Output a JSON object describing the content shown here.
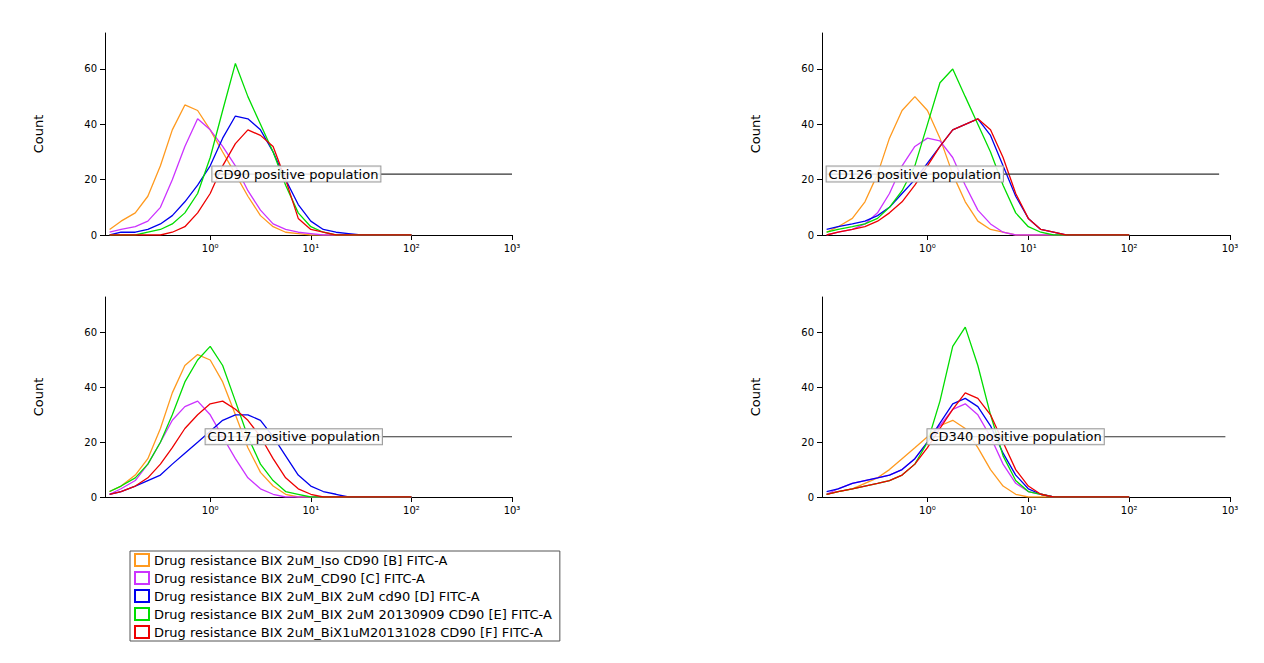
{
  "chart_data": [
    {
      "type": "line",
      "ylabel": "Count",
      "log": "x",
      "legend": "bottom left",
      "xlim": [
        0.09,
        1000
      ],
      "xticks": [
        {
          "value": 1,
          "label": "10⁰"
        },
        {
          "value": 10,
          "label": "10¹"
        },
        {
          "value": 100,
          "label": "10²"
        },
        {
          "value": 1000,
          "label": "10³"
        }
      ],
      "ylim": [
        0,
        73
      ],
      "yticks": [
        0,
        20,
        40,
        60
      ],
      "annotations": [
        {
          "text": "CD90 positive population",
          "x": [
            1.05,
            1000
          ],
          "y": 22
        }
      ],
      "x": [
        0.1,
        0.13,
        0.18,
        0.24,
        0.32,
        0.42,
        0.56,
        0.75,
        1,
        1.33,
        1.78,
        2.37,
        3.16,
        4.22,
        5.62,
        7.5,
        10,
        13.3,
        17.8,
        23.7,
        31.6,
        42,
        56,
        75,
        100
      ],
      "series": [
        {
          "name": "Drug resistance BIX 2uM_Iso CD90 [B] FITC-A",
          "color": "#ff9a1f",
          "values": [
            2,
            5,
            8,
            14,
            25,
            38,
            47,
            45,
            38,
            30,
            22,
            14,
            7,
            3,
            1,
            0.5,
            0,
            0,
            0,
            0,
            0,
            0,
            0,
            0,
            0
          ]
        },
        {
          "name": "Drug resistance BIX 2uM_CD90 [C] FITC-A",
          "color": "#cc33ff",
          "values": [
            1,
            2,
            3,
            5,
            10,
            20,
            32,
            42,
            38,
            32,
            25,
            16,
            9,
            4,
            2,
            1,
            0.5,
            0,
            0,
            0,
            0,
            0,
            0,
            0,
            0
          ]
        },
        {
          "name": "Drug resistance BIX 2uM_BIX 2uM cd90 [D] FITC-A",
          "color": "#0000ee",
          "values": [
            0,
            1,
            1,
            2,
            4,
            7,
            12,
            18,
            25,
            35,
            43,
            42,
            38,
            30,
            20,
            11,
            5,
            2,
            1,
            0.5,
            0,
            0,
            0,
            0,
            0
          ]
        },
        {
          "name": "Drug resistance BIX 2uM_BIX 2uM 20130909 CD90 [E] FITC-A",
          "color": "#00dd00",
          "values": [
            0,
            0,
            0,
            1,
            2,
            4,
            8,
            15,
            28,
            45,
            62,
            50,
            40,
            30,
            18,
            8,
            3,
            1,
            0,
            0,
            0,
            0,
            0,
            0,
            0
          ]
        },
        {
          "name": "Drug resistance BIX 2uM_BiX1uM20131028 CD90 [F] FITC-A",
          "color": "#ee0000",
          "values": [
            0,
            0,
            0,
            0,
            0,
            1,
            3,
            8,
            15,
            25,
            33,
            38,
            36,
            32,
            20,
            6,
            2,
            1,
            0,
            0,
            0,
            0,
            0,
            0,
            0
          ]
        }
      ]
    },
    {
      "type": "line",
      "ylabel": "Count",
      "log": "x",
      "xlim": [
        0.09,
        1000
      ],
      "xticks": [
        {
          "value": 1,
          "label": "10⁰"
        },
        {
          "value": 10,
          "label": "10¹"
        },
        {
          "value": 100,
          "label": "10²"
        },
        {
          "value": 1000,
          "label": "10³"
        }
      ],
      "ylim": [
        0,
        73
      ],
      "yticks": [
        0,
        20,
        40,
        60
      ],
      "annotations": [
        {
          "text": "CD126 positive population",
          "x": [
            0.1,
            780
          ],
          "y": 22
        }
      ],
      "x": [
        0.1,
        0.13,
        0.18,
        0.24,
        0.32,
        0.42,
        0.56,
        0.75,
        1,
        1.33,
        1.78,
        2.37,
        3.16,
        4.22,
        5.62,
        7.5,
        10,
        13.3,
        17.8,
        23.7,
        31.6,
        42,
        56,
        75,
        100
      ],
      "series": [
        {
          "name": "Drug resistance BIX 2uM_Iso CD90 [B] FITC-A",
          "color": "#ff9a1f",
          "values": [
            1,
            3,
            6,
            12,
            22,
            35,
            45,
            50,
            45,
            35,
            22,
            12,
            5,
            2,
            1,
            0,
            0,
            0,
            0,
            0,
            0,
            0,
            0,
            0,
            0
          ]
        },
        {
          "name": "Drug resistance BIX 2uM_CD90 [C] FITC-A",
          "color": "#cc33ff",
          "values": [
            0,
            1,
            2,
            4,
            8,
            15,
            25,
            32,
            35,
            34,
            28,
            18,
            9,
            4,
            1,
            0,
            0,
            0,
            0,
            0,
            0,
            0,
            0,
            0,
            0
          ]
        },
        {
          "name": "Drug resistance BIX 2uM_BIX 2uM cd90 [D] FITC-A",
          "color": "#0000ee",
          "values": [
            2,
            3,
            4,
            5,
            7,
            10,
            15,
            20,
            26,
            32,
            38,
            40,
            42,
            36,
            25,
            14,
            6,
            2,
            1,
            0,
            0,
            0,
            0,
            0,
            0
          ]
        },
        {
          "name": "Drug resistance BIX 2uM_BIX 2uM 20130909 CD90 [E] FITC-A",
          "color": "#00dd00",
          "values": [
            1,
            2,
            3,
            4,
            6,
            10,
            16,
            25,
            40,
            55,
            60,
            50,
            40,
            30,
            18,
            8,
            3,
            1,
            0,
            0,
            0,
            0,
            0,
            0,
            0
          ]
        },
        {
          "name": "Drug resistance BIX 2uM_BiX1uM20131028 CD90 [F] FITC-A",
          "color": "#ee0000",
          "values": [
            0,
            1,
            2,
            3,
            5,
            8,
            12,
            18,
            25,
            32,
            38,
            40,
            42,
            38,
            28,
            15,
            6,
            2,
            1,
            0,
            0,
            0,
            0,
            0,
            0
          ]
        }
      ]
    },
    {
      "type": "line",
      "ylabel": "Count",
      "log": "x",
      "xlim": [
        0.09,
        1000
      ],
      "xticks": [
        {
          "value": 1,
          "label": "10⁰"
        },
        {
          "value": 10,
          "label": "10¹"
        },
        {
          "value": 100,
          "label": "10²"
        },
        {
          "value": 1000,
          "label": "10³"
        }
      ],
      "ylim": [
        0,
        73
      ],
      "yticks": [
        0,
        20,
        40,
        60
      ],
      "annotations": [
        {
          "text": "CD117 positive population",
          "x": [
            0.9,
            1000
          ],
          "y": 22
        }
      ],
      "x": [
        0.1,
        0.13,
        0.18,
        0.24,
        0.32,
        0.42,
        0.56,
        0.75,
        1,
        1.33,
        1.78,
        2.37,
        3.16,
        4.22,
        5.62,
        7.5,
        10,
        13.3,
        17.8,
        23.7,
        31.6,
        42,
        56,
        75,
        100
      ],
      "series": [
        {
          "name": "Drug resistance BIX 2uM_Iso CD90 [B] FITC-A",
          "color": "#ff9a1f",
          "values": [
            2,
            4,
            8,
            14,
            25,
            38,
            48,
            52,
            50,
            42,
            30,
            18,
            9,
            4,
            1,
            0,
            0,
            0,
            0,
            0,
            0,
            0,
            0,
            0,
            0
          ]
        },
        {
          "name": "Drug resistance BIX 2uM_CD90 [C] FITC-A",
          "color": "#cc33ff",
          "values": [
            1,
            3,
            6,
            12,
            20,
            28,
            33,
            35,
            30,
            22,
            14,
            7,
            3,
            1,
            0,
            0,
            0,
            0,
            0,
            0,
            0,
            0,
            0,
            0,
            0
          ]
        },
        {
          "name": "Drug resistance BIX 2uM_BIX 2uM cd90 [D] FITC-A",
          "color": "#0000ee",
          "values": [
            1,
            2,
            4,
            6,
            8,
            12,
            16,
            20,
            24,
            28,
            30,
            30,
            28,
            22,
            15,
            8,
            4,
            2,
            1,
            0,
            0,
            0,
            0,
            0,
            0
          ]
        },
        {
          "name": "Drug resistance BIX 2uM_BIX 2uM 20130909 CD90 [E] FITC-A",
          "color": "#00dd00",
          "values": [
            2,
            4,
            7,
            12,
            20,
            30,
            42,
            50,
            55,
            48,
            35,
            22,
            12,
            6,
            2,
            1,
            0,
            0,
            0,
            0,
            0,
            0,
            0,
            0,
            0
          ]
        },
        {
          "name": "Drug resistance BIX 2uM_BiX1uM20131028 CD90 [F] FITC-A",
          "color": "#ee0000",
          "values": [
            1,
            2,
            4,
            7,
            12,
            18,
            25,
            30,
            34,
            35,
            32,
            28,
            22,
            14,
            7,
            3,
            1,
            0,
            0,
            0,
            0,
            0,
            0,
            0,
            0
          ]
        }
      ]
    },
    {
      "type": "line",
      "ylabel": "Count",
      "log": "x",
      "xlim": [
        0.09,
        1000
      ],
      "xticks": [
        {
          "value": 1,
          "label": "10⁰"
        },
        {
          "value": 10,
          "label": "10¹"
        },
        {
          "value": 100,
          "label": "10²"
        },
        {
          "value": 1000,
          "label": "10³"
        }
      ],
      "ylim": [
        0,
        73
      ],
      "yticks": [
        0,
        20,
        40,
        60
      ],
      "annotations": [
        {
          "text": "CD340 positive population",
          "x": [
            1,
            900
          ],
          "y": 22
        }
      ],
      "x": [
        0.1,
        0.13,
        0.18,
        0.24,
        0.32,
        0.42,
        0.56,
        0.75,
        1,
        1.33,
        1.78,
        2.37,
        3.16,
        4.22,
        5.62,
        7.5,
        10,
        13.3,
        17.8,
        23.7,
        31.6,
        42,
        56,
        75,
        100
      ],
      "series": [
        {
          "name": "Drug resistance BIX 2uM_Iso CD90 [B] FITC-A",
          "color": "#ff9a1f",
          "values": [
            1,
            2,
            3,
            5,
            7,
            10,
            14,
            18,
            22,
            26,
            28,
            25,
            18,
            10,
            4,
            1,
            0,
            0,
            0,
            0,
            0,
            0,
            0,
            0,
            0
          ]
        },
        {
          "name": "Drug resistance BIX 2uM_CD90 [C] FITC-A",
          "color": "#cc33ff",
          "values": [
            1,
            3,
            5,
            6,
            7,
            8,
            10,
            14,
            20,
            26,
            32,
            34,
            30,
            22,
            12,
            5,
            2,
            1,
            0,
            0,
            0,
            0,
            0,
            0,
            0
          ]
        },
        {
          "name": "Drug resistance BIX 2uM_BIX 2uM cd90 [D] FITC-A",
          "color": "#0000ee",
          "values": [
            2,
            3,
            5,
            6,
            7,
            8,
            10,
            14,
            20,
            27,
            34,
            36,
            33,
            26,
            16,
            8,
            3,
            1,
            0,
            0,
            0,
            0,
            0,
            0,
            0
          ]
        },
        {
          "name": "Drug resistance BIX 2uM_BIX 2uM 20130909 CD90 [E] FITC-A",
          "color": "#00dd00",
          "values": [
            1,
            2,
            3,
            4,
            5,
            6,
            8,
            12,
            20,
            35,
            55,
            62,
            48,
            30,
            15,
            6,
            2,
            1,
            0,
            0,
            0,
            0,
            0,
            0,
            0
          ]
        },
        {
          "name": "Drug resistance BIX 2uM_BiX1uM20131028 CD90 [F] FITC-A",
          "color": "#ee0000",
          "values": [
            1,
            2,
            3,
            4,
            5,
            6,
            8,
            12,
            18,
            25,
            32,
            38,
            36,
            30,
            20,
            10,
            4,
            1,
            0,
            0,
            0,
            0,
            0,
            0,
            0
          ]
        }
      ]
    }
  ]
}
